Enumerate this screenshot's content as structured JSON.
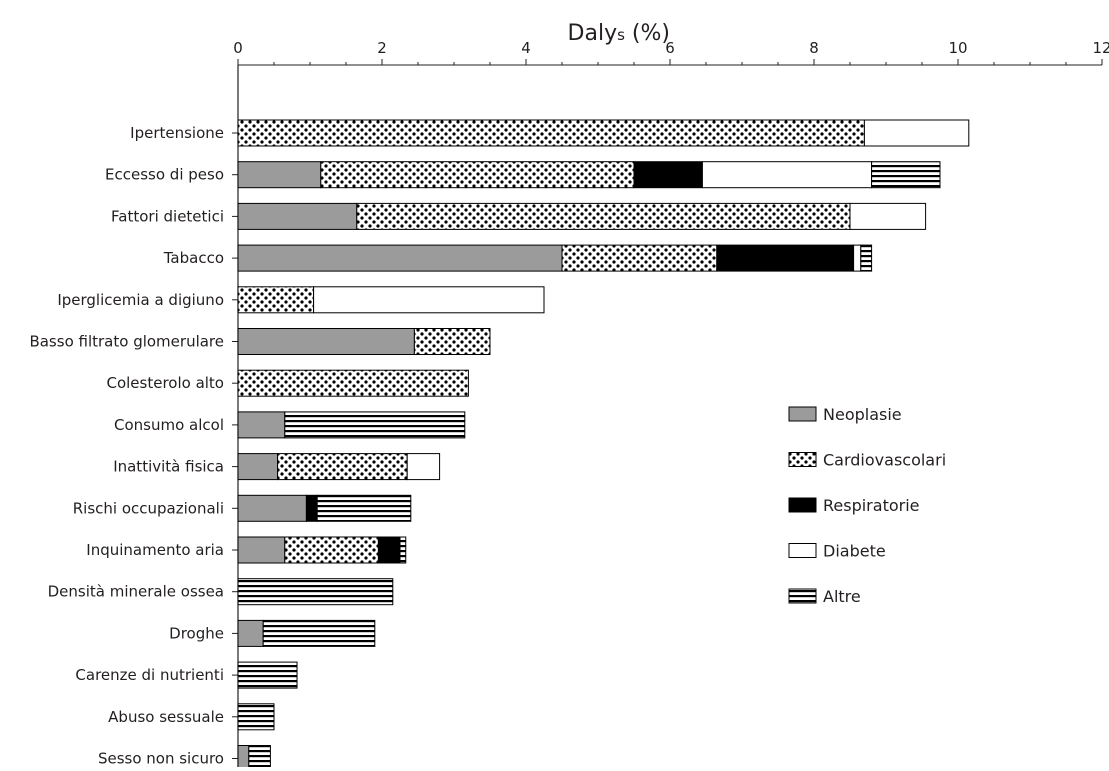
{
  "chart_data": {
    "type": "bar",
    "orientation": "horizontal",
    "stacked": true,
    "title": "",
    "xlabel_main": "Daly",
    "xlabel_sub": "s",
    "xlabel_unit": " (%)",
    "xlim": [
      0,
      12
    ],
    "xticks": [
      "0",
      "2",
      "4",
      "6",
      "8",
      "10",
      "12"
    ],
    "x_axis_position": "top",
    "grid": false,
    "legend_position": "right",
    "categories": [
      "Ipertensione",
      "Eccesso di peso",
      "Fattori dietetici",
      "Tabacco",
      "Iperglicemia a digiuno",
      "Basso filtrato glomerulare",
      "Colesterolo alto",
      "Consumo alcol",
      "Inattività fisica",
      "Rischi occupazionali",
      "Inquinamento aria",
      "Densità minerale ossea",
      "Droghe",
      "Carenze di nutrienti",
      "Abuso sessuale",
      "Sesso non sicuro"
    ],
    "series": [
      {
        "name": "Neoplasie",
        "pattern": "gray",
        "color": "#9b9b9b",
        "values": [
          0,
          1.15,
          1.65,
          4.5,
          0,
          2.45,
          0,
          0.65,
          0.55,
          0.95,
          0.65,
          0,
          0.35,
          0,
          0,
          0.15
        ]
      },
      {
        "name": "Cardiovascolari",
        "pattern": "dots",
        "color": "#000000",
        "values": [
          8.7,
          4.35,
          6.85,
          2.15,
          1.05,
          1.05,
          3.2,
          0,
          1.8,
          0,
          1.3,
          0,
          0,
          0,
          0,
          0
        ]
      },
      {
        "name": "Respiratorie",
        "pattern": "solid",
        "color": "#000000",
        "values": [
          0,
          0.95,
          0,
          1.9,
          0,
          0,
          0,
          0,
          0,
          0.15,
          0.3,
          0,
          0,
          0,
          0,
          0
        ]
      },
      {
        "name": "Diabete",
        "pattern": "white",
        "color": "#ffffff",
        "values": [
          1.45,
          2.35,
          1.05,
          0.1,
          3.2,
          0,
          0,
          0,
          0.45,
          0,
          0,
          0,
          0,
          0,
          0,
          0
        ]
      },
      {
        "name": "Altre",
        "pattern": "hlines",
        "color": "#000000",
        "values": [
          0,
          0.95,
          0,
          0.15,
          0,
          0,
          0,
          2.5,
          0,
          1.3,
          0.08,
          2.15,
          1.55,
          0.82,
          0.5,
          0.3
        ]
      }
    ],
    "legend": [
      "Neoplasie",
      "Cardiovascolari",
      "Respiratorie",
      "Diabete",
      "Altre"
    ]
  }
}
